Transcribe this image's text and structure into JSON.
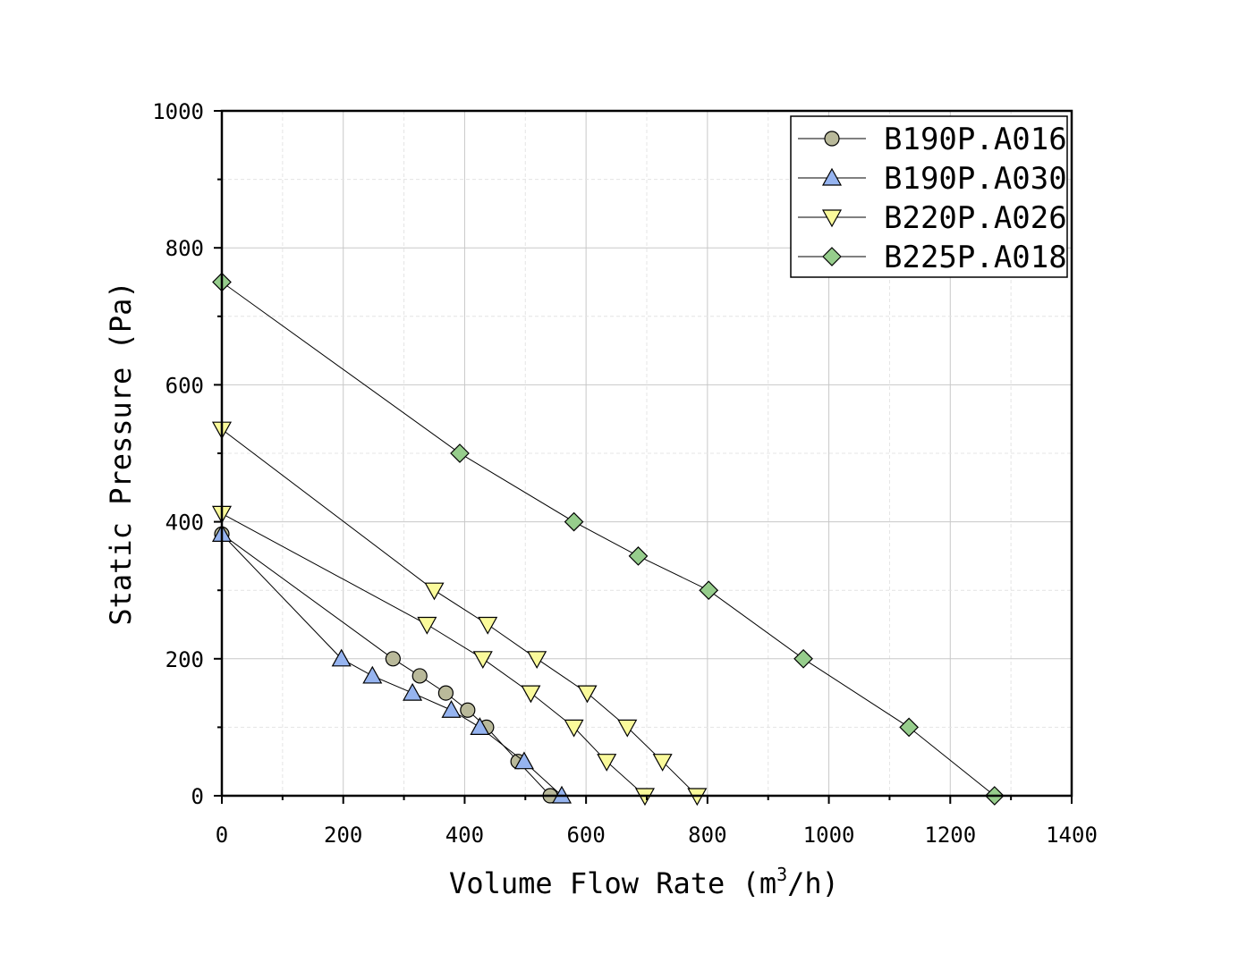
{
  "chart_data": {
    "type": "line",
    "title": "",
    "xlabel": "Volume Flow Rate (m",
    "xlabel_sup": "3",
    "xlabel_tail": "/h)",
    "ylabel": "Static Pressure (Pa)",
    "xlim": [
      0,
      1400
    ],
    "ylim": [
      0,
      1000
    ],
    "x_ticks": [
      "0",
      "200",
      "400",
      "600",
      "800",
      "1000",
      "1200",
      "1400"
    ],
    "y_ticks": [
      "0",
      "200",
      "400",
      "600",
      "800",
      "1000"
    ],
    "grid": true,
    "legend_position": "top-right",
    "series": [
      {
        "name": "B190P.A016",
        "marker": "circle",
        "color": "#b9b99a",
        "points": [
          [
            0,
            382
          ],
          [
            282,
            200
          ],
          [
            326,
            175
          ],
          [
            369,
            150
          ],
          [
            405,
            125
          ],
          [
            436,
            100
          ],
          [
            488,
            50
          ],
          [
            541,
            0
          ]
        ]
      },
      {
        "name": "B190P.A030",
        "marker": "triangle-up",
        "color": "#96b4f0",
        "points": [
          [
            0,
            382
          ],
          [
            197,
            200
          ],
          [
            248,
            175
          ],
          [
            314,
            150
          ],
          [
            378,
            125
          ],
          [
            425,
            100
          ],
          [
            498,
            50
          ],
          [
            560,
            0
          ]
        ]
      },
      {
        "name": "B220P.A026",
        "marker": "triangle-down",
        "color": "#fafa9b",
        "points": [
          [
            0,
            412
          ],
          [
            338,
            250
          ],
          [
            430,
            200
          ],
          [
            509,
            150
          ],
          [
            580,
            100
          ],
          [
            634,
            50
          ],
          [
            697,
            0
          ]
        ]
      },
      {
        "name": "B220P.A026-b",
        "legend": false,
        "marker": "triangle-down",
        "color": "#fafa9b",
        "points": [
          [
            0,
            535
          ],
          [
            350,
            300
          ],
          [
            438,
            250
          ],
          [
            519,
            200
          ],
          [
            602,
            150
          ],
          [
            668,
            100
          ],
          [
            726,
            50
          ],
          [
            783,
            0
          ]
        ]
      },
      {
        "name": "B225P.A018",
        "marker": "diamond",
        "color": "#96cd8c",
        "points": [
          [
            0,
            750
          ],
          [
            392,
            500
          ],
          [
            580,
            400
          ],
          [
            686,
            350
          ],
          [
            802,
            300
          ],
          [
            958,
            200
          ],
          [
            1132,
            100
          ],
          [
            1273,
            0
          ]
        ]
      }
    ]
  }
}
